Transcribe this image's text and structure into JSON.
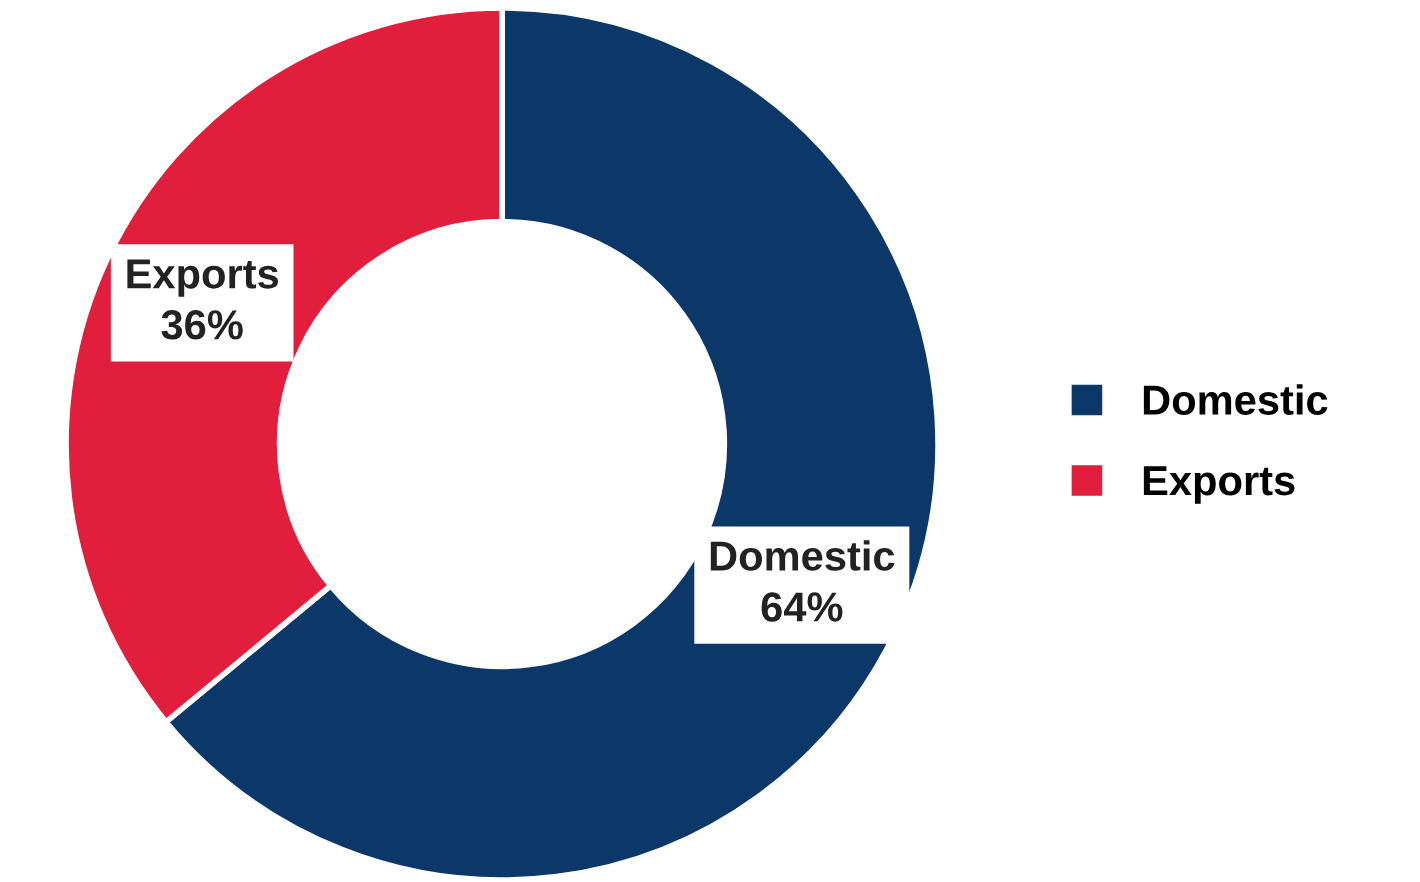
{
  "chart_data": {
    "type": "donut",
    "categories": [
      "Domestic",
      "Exports"
    ],
    "values": [
      64,
      36
    ],
    "colors": [
      "#0b3769",
      "#e21e3d"
    ],
    "value_labels": [
      "64%",
      "36%"
    ],
    "legend": "right"
  }
}
